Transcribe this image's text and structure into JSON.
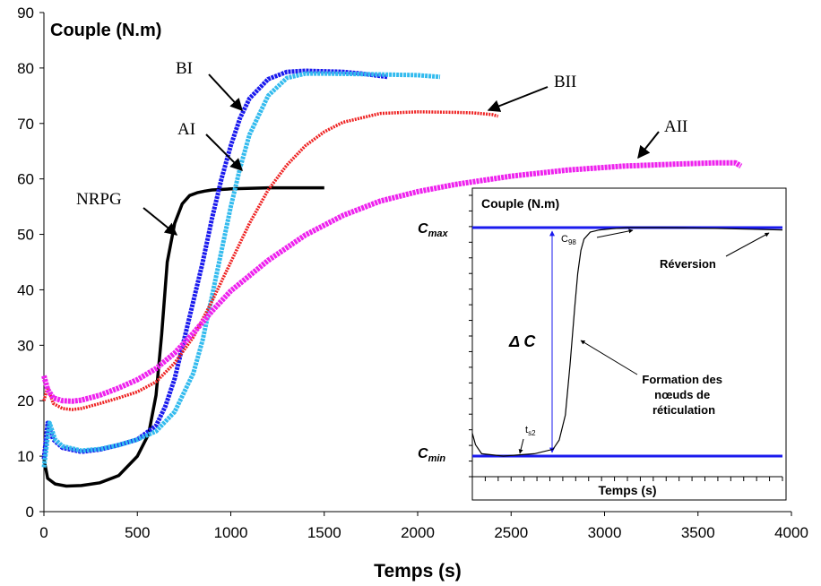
{
  "chart_data": [
    {
      "type": "line",
      "ylabel": "Couple (N.m)",
      "xlabel": "Temps (s)",
      "xlim": [
        0,
        4000
      ],
      "ylim": [
        0,
        90
      ],
      "x_ticks": [
        0,
        500,
        1000,
        1500,
        2000,
        2500,
        3000,
        3500,
        4000
      ],
      "y_ticks": [
        0,
        10,
        20,
        30,
        40,
        50,
        60,
        70,
        80,
        90
      ],
      "grid": false,
      "series": [
        {
          "name": "NRPG",
          "color": "#000000",
          "x": [
            0,
            20,
            60,
            120,
            200,
            300,
            400,
            500,
            560,
            600,
            630,
            660,
            700,
            740,
            780,
            820,
            860,
            900,
            1000,
            1200,
            1500
          ],
          "y": [
            9.5,
            6,
            5,
            4.6,
            4.7,
            5.2,
            6.5,
            10,
            14,
            21,
            32,
            45,
            52,
            55.5,
            57,
            57.5,
            57.8,
            58,
            58.2,
            58.4,
            58.4
          ]
        },
        {
          "name": "BI",
          "color": "#1a1aee",
          "x": [
            0,
            20,
            50,
            100,
            200,
            300,
            400,
            500,
            600,
            650,
            700,
            750,
            800,
            850,
            900,
            950,
            1000,
            1050,
            1100,
            1200,
            1300,
            1400,
            1500,
            1600,
            1700,
            1840
          ],
          "y": [
            9.5,
            16,
            13,
            11.5,
            10.8,
            11.2,
            12,
            13,
            15.5,
            19,
            24,
            31,
            38,
            45,
            53,
            60,
            66,
            71,
            74.5,
            78,
            79.3,
            79.5,
            79.4,
            79.3,
            79,
            78.4
          ]
        },
        {
          "name": "AI",
          "color": "#33bbee",
          "x": [
            0,
            30,
            60,
            100,
            200,
            300,
            400,
            500,
            600,
            700,
            800,
            850,
            900,
            950,
            1000,
            1050,
            1100,
            1200,
            1300,
            1400,
            1500,
            1700,
            2000,
            2120
          ],
          "y": [
            8,
            16,
            13,
            11.8,
            11,
            11.3,
            12,
            13,
            14.5,
            18,
            25,
            31,
            39,
            47,
            55,
            62,
            68,
            75,
            78.2,
            79,
            79,
            78.9,
            78.7,
            78.4
          ]
        },
        {
          "name": "BII",
          "color": "#ee2222",
          "x": [
            0,
            20,
            50,
            100,
            150,
            200,
            300,
            400,
            500,
            600,
            700,
            800,
            900,
            1000,
            1100,
            1200,
            1300,
            1400,
            1500,
            1600,
            1800,
            2000,
            2200,
            2300,
            2400,
            2430
          ],
          "y": [
            20,
            22.5,
            19.5,
            18.6,
            18.4,
            18.6,
            19.5,
            20.5,
            21.6,
            23.4,
            26.8,
            31.5,
            38,
            45,
            52,
            58,
            62.5,
            66,
            68.5,
            70.2,
            71.8,
            72.1,
            72,
            71.9,
            71.6,
            71.3
          ]
        },
        {
          "name": "AII",
          "color": "#ee22ee",
          "x": [
            0,
            20,
            50,
            100,
            150,
            200,
            300,
            400,
            500,
            600,
            700,
            800,
            900,
            1000,
            1200,
            1400,
            1600,
            1800,
            2000,
            2200,
            2500,
            2800,
            3100,
            3400,
            3600,
            3700,
            3730
          ],
          "y": [
            24.5,
            22,
            20.5,
            20,
            19.9,
            20.1,
            21,
            22.3,
            23.8,
            25.8,
            28.6,
            32.2,
            36.2,
            39.8,
            45.3,
            49.9,
            53.4,
            56,
            57.7,
            59,
            60.5,
            61.6,
            62.3,
            62.7,
            62.9,
            62.9,
            62.3
          ]
        }
      ],
      "labels": [
        {
          "text": "NRPG",
          "x": 730,
          "y": 52
        },
        {
          "text": "BI",
          "x": 1050,
          "y": 72
        },
        {
          "text": "AI",
          "x": 1020,
          "y": 62
        },
        {
          "text": "BII",
          "x": 2380,
          "y": 71.5
        },
        {
          "text": "AII",
          "x": 3150,
          "y": 61.5
        }
      ]
    },
    {
      "type": "line",
      "ylabel": "Couple (N.m)",
      "xlabel": "Temps (s)",
      "levels": {
        "max": "C",
        "max_sub": "max",
        "min": "C",
        "min_sub": "min"
      },
      "delta_label": "Δ C",
      "series": [
        {
          "name": "",
          "color": "#000000",
          "x": [
            0,
            0.01,
            0.03,
            0.1,
            0.2,
            0.26,
            0.28,
            0.3,
            0.315,
            0.33,
            0.34,
            0.35,
            0.36,
            0.38,
            0.41,
            0.45,
            0.5,
            0.6,
            0.7,
            0.8,
            0.9,
            1.0
          ],
          "y": [
            0.1,
            0.05,
            0.01,
            0,
            0.01,
            0.03,
            0.07,
            0.18,
            0.4,
            0.65,
            0.8,
            0.9,
            0.95,
            0.98,
            0.99,
            0.995,
            1.0,
            1.0,
            0.999,
            0.996,
            0.993,
            0.99
          ]
        }
      ],
      "annotations": {
        "c98": "C",
        "c98_sub": "98",
        "reversion": "Réversion",
        "ts2": "t",
        "ts2_sub": "s2",
        "formation_lines": [
          "Formation des",
          "nœuds de",
          "réticulation"
        ]
      }
    }
  ]
}
